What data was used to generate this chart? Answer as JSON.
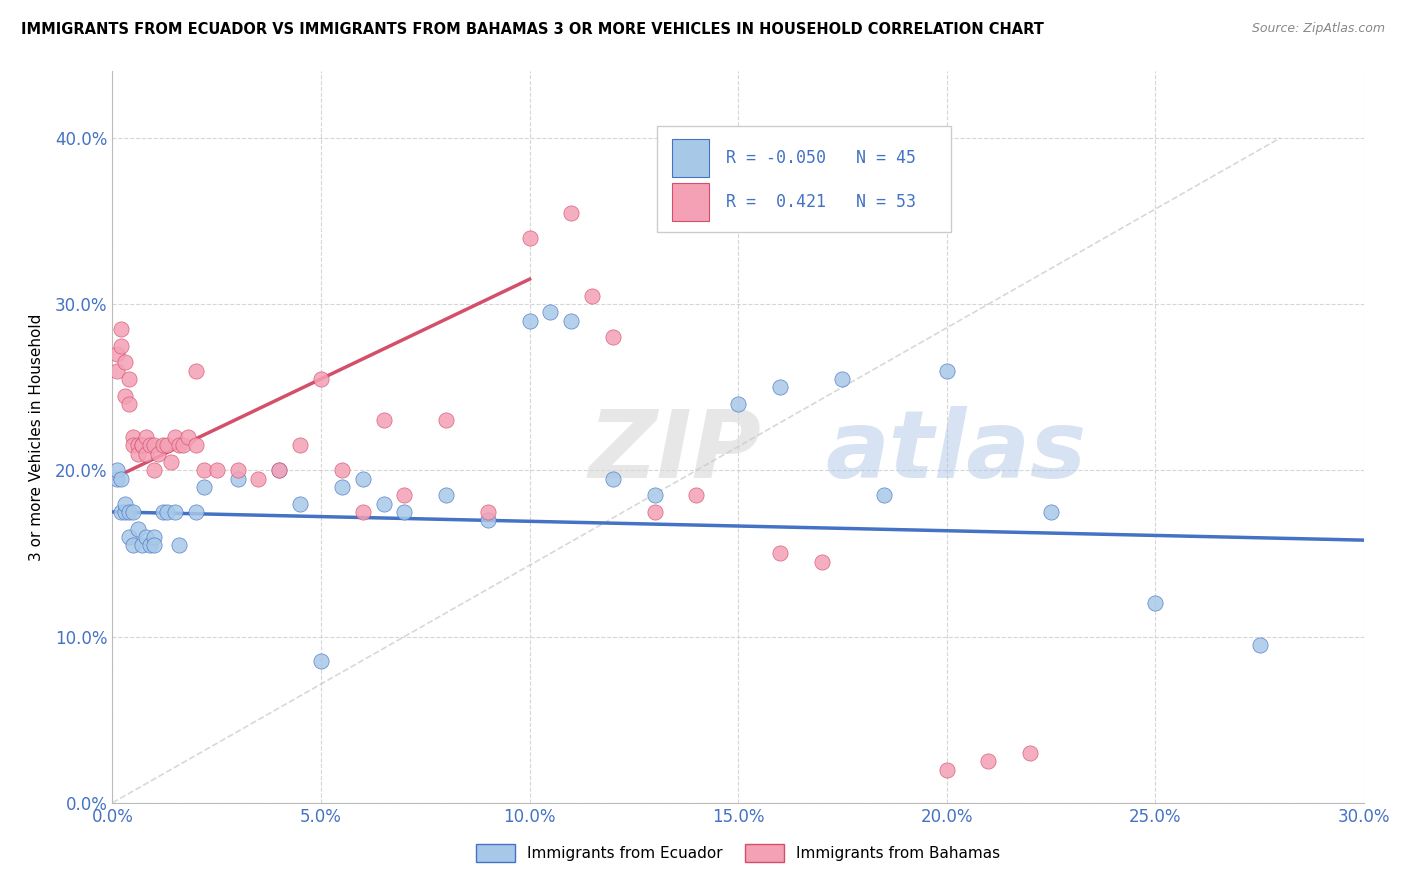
{
  "title": "IMMIGRANTS FROM ECUADOR VS IMMIGRANTS FROM BAHAMAS 3 OR MORE VEHICLES IN HOUSEHOLD CORRELATION CHART",
  "source": "Source: ZipAtlas.com",
  "xlim": [
    0.0,
    0.3
  ],
  "ylim": [
    0.0,
    0.44
  ],
  "watermark_zip": "ZIP",
  "watermark_atlas": "atlas",
  "ylabel": "3 or more Vehicles in Household",
  "color_ecuador": "#a8c8e8",
  "color_bahamas": "#f4a0b5",
  "line_ecuador": "#4472c4",
  "line_bahamas": "#d4506a",
  "line_ref": "#c8c8c8",
  "ecuador_x": [
    0.001,
    0.001,
    0.002,
    0.002,
    0.003,
    0.003,
    0.004,
    0.004,
    0.005,
    0.005,
    0.006,
    0.007,
    0.008,
    0.009,
    0.01,
    0.01,
    0.012,
    0.013,
    0.015,
    0.016,
    0.02,
    0.022,
    0.03,
    0.04,
    0.045,
    0.05,
    0.055,
    0.06,
    0.065,
    0.07,
    0.08,
    0.09,
    0.1,
    0.105,
    0.11,
    0.12,
    0.13,
    0.15,
    0.16,
    0.175,
    0.185,
    0.2,
    0.225,
    0.25,
    0.275
  ],
  "ecuador_y": [
    0.195,
    0.2,
    0.195,
    0.175,
    0.175,
    0.18,
    0.175,
    0.16,
    0.175,
    0.155,
    0.165,
    0.155,
    0.16,
    0.155,
    0.16,
    0.155,
    0.175,
    0.175,
    0.175,
    0.155,
    0.175,
    0.19,
    0.195,
    0.2,
    0.18,
    0.085,
    0.19,
    0.195,
    0.18,
    0.175,
    0.185,
    0.17,
    0.29,
    0.295,
    0.29,
    0.195,
    0.185,
    0.24,
    0.25,
    0.255,
    0.185,
    0.26,
    0.175,
    0.12,
    0.095
  ],
  "bahamas_x": [
    0.001,
    0.001,
    0.002,
    0.002,
    0.003,
    0.003,
    0.004,
    0.004,
    0.005,
    0.005,
    0.006,
    0.006,
    0.007,
    0.007,
    0.008,
    0.008,
    0.009,
    0.01,
    0.01,
    0.011,
    0.012,
    0.013,
    0.014,
    0.015,
    0.016,
    0.017,
    0.018,
    0.02,
    0.022,
    0.025,
    0.03,
    0.035,
    0.04,
    0.045,
    0.05,
    0.055,
    0.06,
    0.065,
    0.07,
    0.08,
    0.09,
    0.1,
    0.11,
    0.115,
    0.12,
    0.13,
    0.14,
    0.16,
    0.17,
    0.2,
    0.21,
    0.22,
    0.02
  ],
  "bahamas_y": [
    0.27,
    0.26,
    0.275,
    0.285,
    0.265,
    0.245,
    0.255,
    0.24,
    0.22,
    0.215,
    0.215,
    0.21,
    0.215,
    0.215,
    0.22,
    0.21,
    0.215,
    0.2,
    0.215,
    0.21,
    0.215,
    0.215,
    0.205,
    0.22,
    0.215,
    0.215,
    0.22,
    0.215,
    0.2,
    0.2,
    0.2,
    0.195,
    0.2,
    0.215,
    0.255,
    0.2,
    0.175,
    0.23,
    0.185,
    0.23,
    0.175,
    0.34,
    0.355,
    0.305,
    0.28,
    0.175,
    0.185,
    0.15,
    0.145,
    0.02,
    0.025,
    0.03,
    0.26
  ],
  "ec_trend_x": [
    0.0,
    0.3
  ],
  "ec_trend_y": [
    0.175,
    0.158
  ],
  "bah_trend_x": [
    0.0,
    0.1
  ],
  "bah_trend_y": [
    0.195,
    0.315
  ]
}
